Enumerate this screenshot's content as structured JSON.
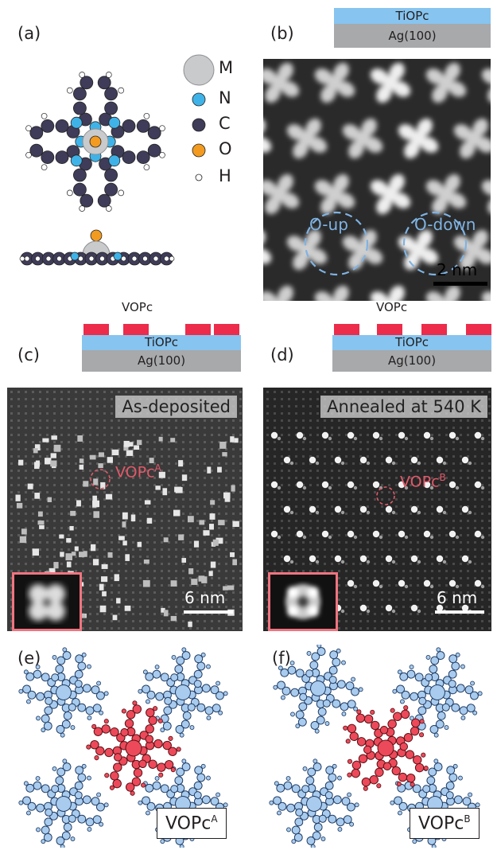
{
  "panels": {
    "a": "(a)",
    "b": "(b)",
    "c": "(c)",
    "d": "(d)",
    "e": "(e)",
    "f": "(f)"
  },
  "legend": [
    {
      "symbol": "metal",
      "label": "M",
      "color": "#c9cacc"
    },
    {
      "symbol": "nitrogen",
      "label": "N",
      "color": "#3fb3e8"
    },
    {
      "symbol": "carbon",
      "label": "C",
      "color": "#3e3c58"
    },
    {
      "symbol": "oxygen",
      "label": "O",
      "color": "#f29b20"
    },
    {
      "symbol": "hydrogen",
      "label": "H",
      "color": "#ffffff"
    }
  ],
  "layers": {
    "top_film": "TiOPc",
    "substrate": "Ag(100)",
    "adsorbate": "VOPc"
  },
  "b_image": {
    "label_up": "O-up",
    "label_down": "O-down",
    "scale": "2 nm"
  },
  "c_image": {
    "banner": "As-deposited",
    "molecule": "VOPc",
    "molecule_sup": "A",
    "scale": "6 nm"
  },
  "d_image": {
    "banner": "Annealed at 540 K",
    "molecule": "VOPc",
    "molecule_sup": "B",
    "scale": "6 nm"
  },
  "e_model": {
    "label": "VOPc",
    "label_sup": "A"
  },
  "f_model": {
    "label": "VOPc",
    "label_sup": "B"
  },
  "colors": {
    "tiopc_layer": "#87c4ef",
    "ag_layer": "#a7a9ab",
    "vopc_layer": "#ec2c4a",
    "model_blue": "#a8cbee",
    "model_red": "#ec4a5a",
    "highlight": "#f07480"
  }
}
